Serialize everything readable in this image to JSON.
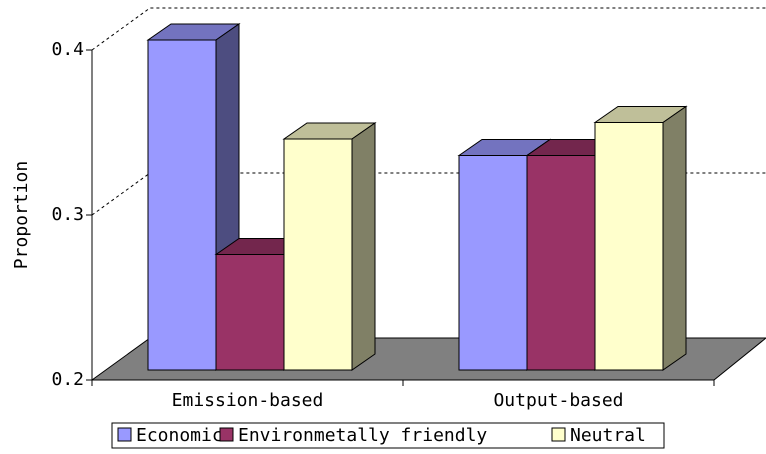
{
  "chart_data": {
    "type": "bar3d",
    "y_label": "Proportion",
    "categories": [
      "Emission-based",
      "Output-based"
    ],
    "series": [
      {
        "name": "Economic",
        "color": "#9999ff",
        "values": [
          0.4,
          0.33
        ]
      },
      {
        "name": "Environmetally friendly",
        "color": "#993366",
        "values": [
          0.27,
          0.33
        ]
      },
      {
        "name": "Neutral",
        "color": "#ffffcc",
        "values": [
          0.34,
          0.35
        ]
      }
    ],
    "ylim": [
      0.2,
      0.4
    ],
    "yticks": [
      0.2,
      0.3,
      0.4
    ],
    "grid": true,
    "legend": "bottom"
  }
}
